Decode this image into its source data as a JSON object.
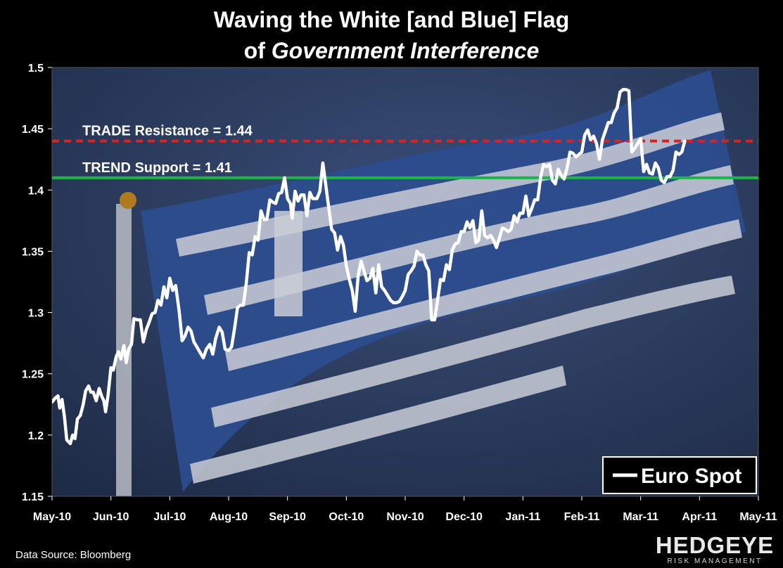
{
  "chart_data": {
    "type": "line",
    "title": "Waving the White [and Blue] Flag",
    "subtitle_prefix": "of ",
    "subtitle_emphasis": "Government Interference",
    "x_tick_labels": [
      "May-10",
      "Jun-10",
      "Jul-10",
      "Aug-10",
      "Sep-10",
      "Oct-10",
      "Nov-10",
      "Dec-10",
      "Jan-11",
      "Feb-11",
      "Mar-11",
      "Apr-11",
      "May-11"
    ],
    "y_tick_labels": [
      "1.5",
      "1.45",
      "1.4",
      "1.35",
      "1.3",
      "1.25",
      "1.2",
      "1.15"
    ],
    "ylim": [
      1.15,
      1.5
    ],
    "xlim": [
      0,
      12
    ],
    "grid": false,
    "legend": {
      "position": "bottom-right",
      "label": "Euro Spot"
    },
    "reference_lines": [
      {
        "label": "TRADE Resistance = 1.44",
        "value": 1.44,
        "color": "#e02020",
        "style": "dashed"
      },
      {
        "label": "TREND Support = 1.41",
        "value": 1.41,
        "color": "#22b24c",
        "style": "solid"
      }
    ],
    "series": [
      {
        "name": "Euro Spot",
        "color": "#ffffff",
        "points": [
          [
            0.0,
            1.227
          ],
          [
            0.05,
            1.23
          ],
          [
            0.1,
            1.232
          ],
          [
            0.13,
            1.222
          ],
          [
            0.17,
            1.229
          ],
          [
            0.21,
            1.215
          ],
          [
            0.25,
            1.196
          ],
          [
            0.31,
            1.193
          ],
          [
            0.35,
            1.2
          ],
          [
            0.39,
            1.197
          ],
          [
            0.43,
            1.213
          ],
          [
            0.48,
            1.216
          ],
          [
            0.53,
            1.225
          ],
          [
            0.57,
            1.236
          ],
          [
            0.62,
            1.24
          ],
          [
            0.66,
            1.235
          ],
          [
            0.7,
            1.235
          ],
          [
            0.75,
            1.228
          ],
          [
            0.8,
            1.238
          ],
          [
            0.84,
            1.232
          ],
          [
            0.88,
            1.228
          ],
          [
            0.91,
            1.219
          ],
          [
            0.95,
            1.232
          ],
          [
            1.0,
            1.255
          ],
          [
            1.04,
            1.253
          ],
          [
            1.09,
            1.264
          ],
          [
            1.13,
            1.268
          ],
          [
            1.17,
            1.262
          ],
          [
            1.22,
            1.273
          ],
          [
            1.26,
            1.259
          ],
          [
            1.3,
            1.27
          ],
          [
            1.35,
            1.274
          ],
          [
            1.39,
            1.295
          ],
          [
            1.45,
            1.294
          ],
          [
            1.5,
            1.294
          ],
          [
            1.55,
            1.276
          ],
          [
            1.6,
            1.286
          ],
          [
            1.65,
            1.292
          ],
          [
            1.7,
            1.299
          ],
          [
            1.75,
            1.3
          ],
          [
            1.8,
            1.31
          ],
          [
            1.85,
            1.306
          ],
          [
            1.9,
            1.321
          ],
          [
            1.95,
            1.312
          ],
          [
            2.0,
            1.328
          ],
          [
            2.05,
            1.318
          ],
          [
            2.1,
            1.322
          ],
          [
            2.16,
            1.301
          ],
          [
            2.21,
            1.277
          ],
          [
            2.26,
            1.281
          ],
          [
            2.31,
            1.288
          ],
          [
            2.36,
            1.285
          ],
          [
            2.41,
            1.276
          ],
          [
            2.46,
            1.272
          ],
          [
            2.52,
            1.267
          ],
          [
            2.57,
            1.263
          ],
          [
            2.62,
            1.27
          ],
          [
            2.68,
            1.274
          ],
          [
            2.73,
            1.266
          ],
          [
            2.78,
            1.279
          ],
          [
            2.84,
            1.288
          ],
          [
            2.89,
            1.284
          ],
          [
            2.94,
            1.27
          ],
          [
            3.0,
            1.269
          ],
          [
            3.05,
            1.272
          ],
          [
            3.1,
            1.287
          ],
          [
            3.15,
            1.304
          ],
          [
            3.2,
            1.306
          ],
          [
            3.25,
            1.306
          ],
          [
            3.3,
            1.324
          ],
          [
            3.35,
            1.349
          ],
          [
            3.4,
            1.347
          ],
          [
            3.45,
            1.362
          ],
          [
            3.5,
            1.359
          ],
          [
            3.55,
            1.383
          ],
          [
            3.6,
            1.376
          ],
          [
            3.65,
            1.376
          ],
          [
            3.7,
            1.392
          ],
          [
            3.75,
            1.39
          ],
          [
            3.8,
            1.389
          ],
          [
            3.85,
            1.397
          ],
          [
            3.9,
            1.398
          ],
          [
            3.95,
            1.41
          ],
          [
            4.0,
            1.393
          ],
          [
            4.05,
            1.389
          ],
          [
            4.08,
            1.377
          ],
          [
            4.13,
            1.399
          ],
          [
            4.18,
            1.391
          ],
          [
            4.23,
            1.396
          ],
          [
            4.28,
            1.396
          ],
          [
            4.33,
            1.379
          ],
          [
            4.38,
            1.398
          ],
          [
            4.43,
            1.393
          ],
          [
            4.5,
            1.393
          ],
          [
            4.55,
            1.399
          ],
          [
            4.6,
            1.422
          ],
          [
            4.65,
            1.404
          ],
          [
            4.7,
            1.386
          ],
          [
            4.75,
            1.368
          ],
          [
            4.8,
            1.365
          ],
          [
            4.85,
            1.351
          ],
          [
            4.9,
            1.362
          ],
          [
            4.95,
            1.355
          ],
          [
            5.0,
            1.338
          ],
          [
            5.05,
            1.327
          ],
          [
            5.1,
            1.318
          ],
          [
            5.15,
            1.301
          ],
          [
            5.2,
            1.33
          ],
          [
            5.25,
            1.342
          ],
          [
            5.3,
            1.334
          ],
          [
            5.35,
            1.326
          ],
          [
            5.4,
            1.328
          ],
          [
            5.45,
            1.336
          ],
          [
            5.5,
            1.316
          ],
          [
            5.55,
            1.339
          ],
          [
            5.6,
            1.321
          ],
          [
            5.65,
            1.318
          ],
          [
            5.7,
            1.314
          ],
          [
            5.75,
            1.31
          ],
          [
            5.8,
            1.308
          ],
          [
            5.85,
            1.308
          ],
          [
            5.9,
            1.309
          ],
          [
            5.95,
            1.313
          ],
          [
            6.0,
            1.318
          ],
          [
            6.05,
            1.331
          ],
          [
            6.1,
            1.334
          ],
          [
            6.15,
            1.338
          ],
          [
            6.2,
            1.35
          ],
          [
            6.25,
            1.347
          ],
          [
            6.3,
            1.347
          ],
          [
            6.35,
            1.339
          ],
          [
            6.4,
            1.334
          ],
          [
            6.45,
            1.294
          ],
          [
            6.5,
            1.294
          ],
          [
            6.55,
            1.31
          ],
          [
            6.6,
            1.327
          ],
          [
            6.65,
            1.326
          ],
          [
            6.7,
            1.339
          ],
          [
            6.75,
            1.335
          ],
          [
            6.8,
            1.351
          ],
          [
            6.85,
            1.356
          ],
          [
            6.9,
            1.357
          ],
          [
            6.95,
            1.366
          ],
          [
            7.0,
            1.366
          ],
          [
            7.05,
            1.374
          ],
          [
            7.1,
            1.369
          ],
          [
            7.15,
            1.375
          ],
          [
            7.2,
            1.357
          ],
          [
            7.25,
            1.359
          ],
          [
            7.3,
            1.383
          ],
          [
            7.35,
            1.363
          ],
          [
            7.4,
            1.361
          ],
          [
            7.45,
            1.363
          ],
          [
            7.5,
            1.359
          ],
          [
            7.55,
            1.353
          ],
          [
            7.6,
            1.361
          ],
          [
            7.65,
            1.369
          ],
          [
            7.7,
            1.368
          ],
          [
            7.75,
            1.366
          ],
          [
            7.8,
            1.368
          ],
          [
            7.85,
            1.379
          ],
          [
            7.9,
            1.374
          ],
          [
            7.95,
            1.381
          ],
          [
            8.0,
            1.381
          ],
          [
            8.05,
            1.395
          ],
          [
            8.1,
            1.379
          ],
          [
            8.15,
            1.385
          ],
          [
            8.2,
            1.392
          ],
          [
            8.25,
            1.392
          ],
          [
            8.3,
            1.41
          ],
          [
            8.35,
            1.421
          ],
          [
            8.4,
            1.419
          ],
          [
            8.45,
            1.421
          ],
          [
            8.5,
            1.408
          ],
          [
            8.55,
            1.405
          ],
          [
            8.6,
            1.417
          ],
          [
            8.65,
            1.412
          ],
          [
            8.7,
            1.409
          ],
          [
            8.75,
            1.418
          ],
          [
            8.8,
            1.431
          ],
          [
            8.85,
            1.43
          ],
          [
            8.9,
            1.427
          ],
          [
            8.95,
            1.429
          ],
          [
            9.0,
            1.431
          ],
          [
            9.05,
            1.445
          ],
          [
            9.1,
            1.449
          ],
          [
            9.15,
            1.441
          ],
          [
            9.2,
            1.444
          ],
          [
            9.25,
            1.438
          ],
          [
            9.3,
            1.425
          ],
          [
            9.35,
            1.441
          ],
          [
            9.4,
            1.448
          ],
          [
            9.45,
            1.455
          ],
          [
            9.5,
            1.455
          ],
          [
            9.55,
            1.463
          ],
          [
            9.6,
            1.467
          ],
          [
            9.65,
            1.48
          ],
          [
            9.7,
            1.482
          ],
          [
            9.75,
            1.482
          ],
          [
            9.8,
            1.481
          ],
          [
            9.85,
            1.431
          ],
          [
            9.9,
            1.434
          ],
          [
            9.95,
            1.438
          ],
          [
            10.0,
            1.442
          ],
          [
            10.05,
            1.415
          ],
          [
            10.1,
            1.421
          ],
          [
            10.15,
            1.414
          ],
          [
            10.2,
            1.413
          ],
          [
            10.25,
            1.422
          ],
          [
            10.3,
            1.418
          ],
          [
            10.35,
            1.408
          ],
          [
            10.4,
            1.406
          ],
          [
            10.45,
            1.411
          ],
          [
            10.5,
            1.411
          ],
          [
            10.55,
            1.416
          ],
          [
            10.6,
            1.431
          ],
          [
            10.65,
            1.429
          ],
          [
            10.7,
            1.431
          ],
          [
            10.75,
            1.44
          ]
        ]
      }
    ]
  },
  "footer": {
    "source": "Data Source: Bloomberg",
    "brand_name": "HEDGEYE",
    "brand_tagline": "RISK MANAGEMENT"
  },
  "colors": {
    "page_background": "#000000",
    "plot_background": "#2a3b5e",
    "flag_blue": "#2c4d8f",
    "flag_white": "#c9cdd6"
  }
}
